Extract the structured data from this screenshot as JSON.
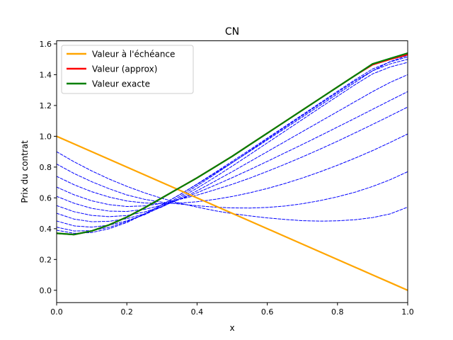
{
  "chart_data": {
    "type": "line",
    "title": "CN",
    "xlabel": "x",
    "ylabel": "Prix du contrat",
    "xlim": [
      0,
      1
    ],
    "ylim": [
      -0.08,
      1.62
    ],
    "x_ticks": [
      "0.0",
      "0.2",
      "0.4",
      "0.6",
      "0.8",
      "1.0"
    ],
    "y_ticks": [
      "0.0",
      "0.2",
      "0.4",
      "0.6",
      "0.8",
      "1.0",
      "1.2",
      "1.4",
      "1.6"
    ],
    "x": [
      0.0,
      0.05,
      0.1,
      0.15,
      0.2,
      0.25,
      0.3,
      0.35,
      0.4,
      0.45,
      0.5,
      0.55,
      0.6,
      0.65,
      0.7,
      0.75,
      0.8,
      0.85,
      0.9,
      0.95,
      1.0
    ],
    "grid": false,
    "legend": "top-left",
    "series": [
      {
        "name": "Valeur à l'échéance",
        "color": "#ffa500",
        "style": "solid",
        "values": [
          1.0,
          0.95,
          0.9,
          0.85,
          0.8,
          0.75,
          0.7,
          0.65,
          0.6,
          0.55,
          0.5,
          0.45,
          0.4,
          0.35,
          0.3,
          0.25,
          0.2,
          0.15,
          0.1,
          0.05,
          0.0
        ]
      },
      {
        "name": "Valeur (approx)",
        "color": "#ff0000",
        "style": "solid",
        "values": [
          0.37,
          0.362,
          0.385,
          0.425,
          0.475,
          0.535,
          0.6,
          0.665,
          0.73,
          0.8,
          0.87,
          0.945,
          1.02,
          1.095,
          1.17,
          1.245,
          1.32,
          1.395,
          1.465,
          1.5,
          1.53
        ]
      },
      {
        "name": "Valeur exacte",
        "color": "#008000",
        "style": "solid",
        "values": [
          0.37,
          0.362,
          0.385,
          0.425,
          0.475,
          0.535,
          0.6,
          0.665,
          0.73,
          0.8,
          0.87,
          0.945,
          1.02,
          1.095,
          1.17,
          1.245,
          1.32,
          1.395,
          1.47,
          1.505,
          1.54
        ]
      },
      {
        "color": "#0000ff",
        "style": "dashed",
        "values": [
          0.9,
          0.834,
          0.775,
          0.722,
          0.675,
          0.633,
          0.597,
          0.566,
          0.54,
          0.517,
          0.498,
          0.483,
          0.47,
          0.46,
          0.452,
          0.449,
          0.451,
          0.458,
          0.472,
          0.496,
          0.54
        ]
      },
      {
        "color": "#0000ff",
        "style": "dashed",
        "values": [
          0.82,
          0.758,
          0.705,
          0.659,
          0.619,
          0.591,
          0.572,
          0.56,
          0.549,
          0.54,
          0.535,
          0.534,
          0.538,
          0.547,
          0.562,
          0.582,
          0.607,
          0.637,
          0.674,
          0.718,
          0.77
        ]
      },
      {
        "color": "#0000ff",
        "style": "dashed",
        "values": [
          0.74,
          0.685,
          0.64,
          0.605,
          0.58,
          0.567,
          0.563,
          0.566,
          0.575,
          0.59,
          0.609,
          0.633,
          0.661,
          0.693,
          0.729,
          0.769,
          0.812,
          0.858,
          0.907,
          0.96,
          1.015
        ]
      },
      {
        "color": "#0000ff",
        "style": "dashed",
        "values": [
          0.67,
          0.62,
          0.581,
          0.556,
          0.544,
          0.548,
          0.564,
          0.59,
          0.618,
          0.652,
          0.688,
          0.728,
          0.772,
          0.818,
          0.866,
          0.916,
          0.968,
          1.022,
          1.077,
          1.133,
          1.19
        ]
      },
      {
        "color": "#0000ff",
        "style": "dashed",
        "values": [
          0.61,
          0.565,
          0.532,
          0.514,
          0.512,
          0.525,
          0.553,
          0.59,
          0.633,
          0.681,
          0.731,
          0.783,
          0.837,
          0.892,
          0.947,
          1.003,
          1.06,
          1.117,
          1.175,
          1.233,
          1.29
        ]
      },
      {
        "color": "#0000ff",
        "style": "dashed",
        "values": [
          0.55,
          0.51,
          0.486,
          0.478,
          0.485,
          0.508,
          0.544,
          0.591,
          0.646,
          0.707,
          0.77,
          0.835,
          0.9,
          0.965,
          1.03,
          1.095,
          1.16,
          1.225,
          1.29,
          1.35,
          1.4
        ]
      },
      {
        "color": "#0000ff",
        "style": "dashed",
        "values": [
          0.5,
          0.462,
          0.445,
          0.448,
          0.465,
          0.496,
          0.541,
          0.598,
          0.663,
          0.733,
          0.806,
          0.881,
          0.957,
          1.033,
          1.109,
          1.185,
          1.26,
          1.335,
          1.405,
          1.45,
          1.48
        ]
      },
      {
        "color": "#0000ff",
        "style": "dashed",
        "values": [
          0.45,
          0.418,
          0.41,
          0.423,
          0.451,
          0.49,
          0.545,
          0.608,
          0.678,
          0.752,
          0.828,
          0.905,
          0.982,
          1.058,
          1.134,
          1.21,
          1.285,
          1.36,
          1.425,
          1.47,
          1.5
        ]
      },
      {
        "color": "#0000ff",
        "style": "dashed",
        "values": [
          0.41,
          0.385,
          0.387,
          0.409,
          0.446,
          0.496,
          0.555,
          0.62,
          0.69,
          0.763,
          0.837,
          0.912,
          0.988,
          1.064,
          1.14,
          1.216,
          1.292,
          1.367,
          1.437,
          1.483,
          1.515
        ]
      },
      {
        "color": "#0000ff",
        "style": "dashed",
        "values": [
          0.39,
          0.37,
          0.375,
          0.4,
          0.44,
          0.495,
          0.556,
          0.62,
          0.688,
          0.758,
          0.829,
          0.902,
          0.976,
          1.05,
          1.125,
          1.2,
          1.275,
          1.35,
          1.425,
          1.485,
          1.525
        ]
      }
    ]
  }
}
